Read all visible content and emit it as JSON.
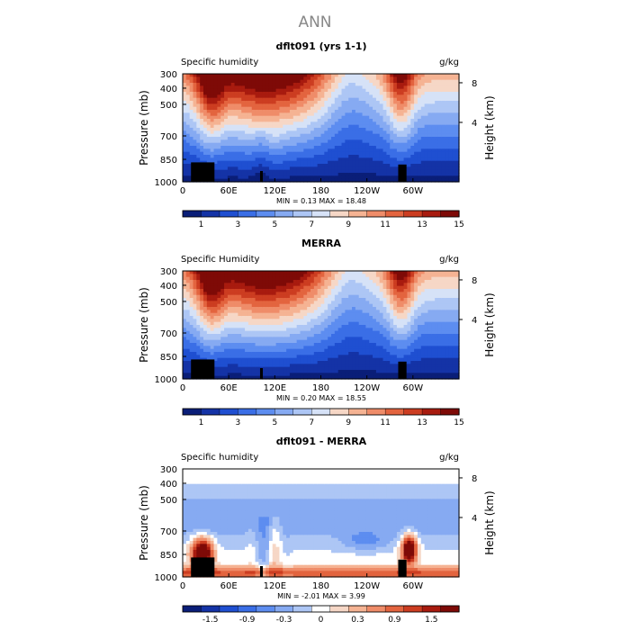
{
  "figure": {
    "title": "ANN",
    "palette_full": [
      "#0a1e78",
      "#1433a6",
      "#1f4fd1",
      "#3a6ee6",
      "#5d8df0",
      "#86aaf2",
      "#adc6f5",
      "#d6e2f7",
      "#f6d7c6",
      "#f5b393",
      "#ef8c69",
      "#e3643f",
      "#cc3d21",
      "#a81b0f",
      "#7e0a07"
    ],
    "palette_diff": [
      "#0a1e78",
      "#1433a6",
      "#1f4fd1",
      "#3a6ee6",
      "#5d8df0",
      "#86aaf2",
      "#adc6f5",
      "#ffffff",
      "#f6d7c6",
      "#f5b393",
      "#ef8c69",
      "#e3643f",
      "#cc3d21",
      "#a81b0f",
      "#7e0a07"
    ],
    "land_color": "#000000"
  },
  "chart_data": [
    {
      "type": "heatmap",
      "title": "dflt091 (yrs 1-1)",
      "left_label": "Specific humidity",
      "units": "g/kg",
      "ylabel": "Pressure (mb)",
      "ylabel_right": "Height (km)",
      "x_ticks": [
        "0",
        "60E",
        "120E",
        "180",
        "120W",
        "60W"
      ],
      "y_ticks": [
        "300",
        "400",
        "500",
        "700",
        "850",
        "1000"
      ],
      "height_ticks": [
        "8",
        "4"
      ],
      "stats": "MIN =    0.13   MAX =   18.48",
      "colorbar_ticks": [
        "1",
        "3",
        "5",
        "7",
        "9",
        "11",
        "13",
        "15"
      ],
      "field": "mean",
      "model": true
    },
    {
      "type": "heatmap",
      "title": "MERRA",
      "left_label": "Specific Humidity",
      "units": "g/kg",
      "ylabel": "Pressure (mb)",
      "ylabel_right": "Height (km)",
      "x_ticks": [
        "0",
        "60E",
        "120E",
        "180",
        "120W",
        "60W"
      ],
      "y_ticks": [
        "300",
        "400",
        "500",
        "700",
        "850",
        "1000"
      ],
      "height_ticks": [
        "8",
        "4"
      ],
      "stats": "MIN =    0.20   MAX =   18.55",
      "colorbar_ticks": [
        "1",
        "3",
        "5",
        "7",
        "9",
        "11",
        "13",
        "15"
      ],
      "field": "mean",
      "model": false
    },
    {
      "type": "heatmap",
      "title": "dflt091 - MERRA",
      "left_label": "Specific humidity",
      "units": "g/kg",
      "ylabel": "Pressure (mb)",
      "ylabel_right": "Height (km)",
      "x_ticks": [
        "0",
        "60E",
        "120E",
        "180",
        "120W",
        "60W"
      ],
      "y_ticks": [
        "300",
        "400",
        "500",
        "700",
        "850",
        "1000"
      ],
      "height_ticks": [
        "8",
        "4"
      ],
      "stats": "MIN =   -2.01   MAX =    3.99",
      "colorbar_ticks": [
        "-1.5",
        "-0.9",
        "-0.3",
        "0",
        "0.3",
        "0.9",
        "1.5"
      ],
      "field": "diff",
      "model": true
    }
  ]
}
